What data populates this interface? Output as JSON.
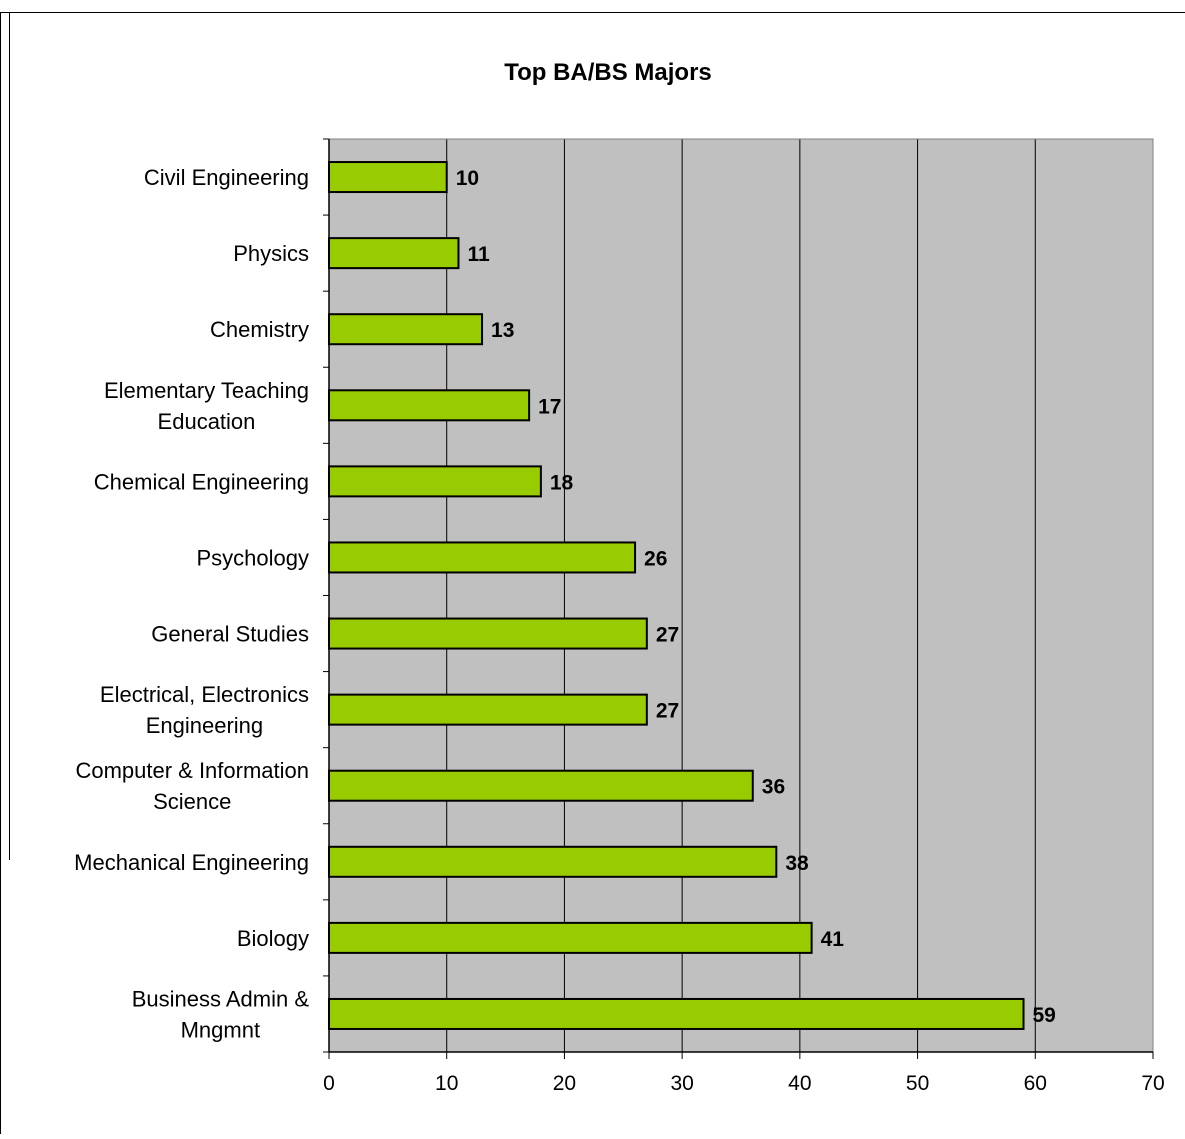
{
  "chart_data": {
    "type": "bar",
    "orientation": "horizontal",
    "title": "Top BA/BS Majors",
    "xlabel": "",
    "ylabel": "",
    "xlim": [
      0,
      70
    ],
    "x_ticks": [
      0,
      10,
      20,
      30,
      40,
      50,
      60,
      70
    ],
    "grid": true,
    "legend": "none",
    "categories": [
      "Civil Engineering",
      "Physics",
      "Chemistry",
      "Elementary Teaching Education",
      "Chemical Engineering",
      "Psychology",
      "General Studies",
      "Electrical, Electronics Engineering",
      "Computer & Information Science",
      "Mechanical Engineering",
      "Biology",
      "Business Admin & Mngmnt"
    ],
    "category_lines": [
      [
        "Civil Engineering"
      ],
      [
        "Physics"
      ],
      [
        "Chemistry"
      ],
      [
        "Elementary Teaching",
        "Education"
      ],
      [
        "Chemical Engineering"
      ],
      [
        "Psychology"
      ],
      [
        "General Studies"
      ],
      [
        "Electrical, Electronics",
        "Engineering"
      ],
      [
        "Computer & Information",
        "Science"
      ],
      [
        "Mechanical Engineering"
      ],
      [
        "Biology"
      ],
      [
        "Business Admin &",
        "Mngmnt"
      ]
    ],
    "values": [
      10,
      11,
      13,
      17,
      18,
      26,
      27,
      27,
      36,
      38,
      41,
      59
    ],
    "colors": {
      "bar": "#99cc00",
      "plot_background": "#c0c0c0",
      "gridline": "#000000",
      "page_background": "#ffffff"
    }
  }
}
